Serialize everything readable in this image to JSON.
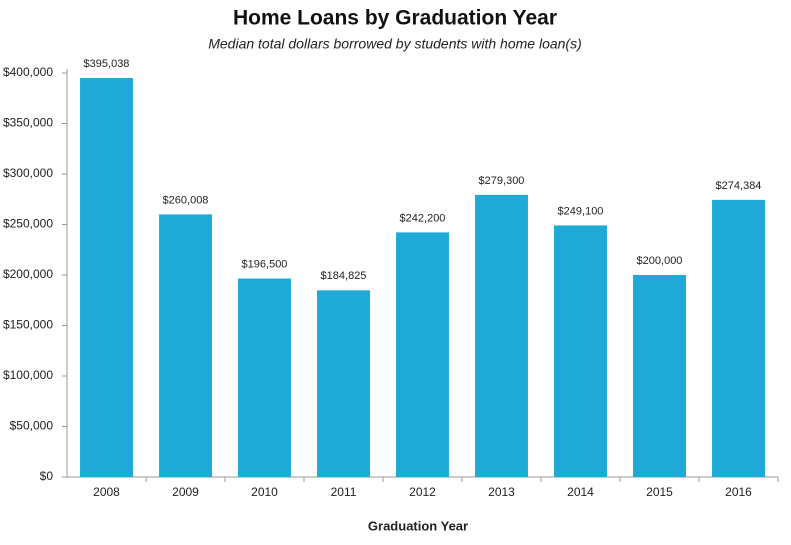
{
  "chart_data": {
    "type": "bar",
    "title": "Home Loans by Graduation Year",
    "subtitle": "Median total dollars borrowed by students with home loan(s)",
    "x_label": "Graduation Year",
    "categories": [
      "2008",
      "2009",
      "2010",
      "2011",
      "2012",
      "2013",
      "2014",
      "2015",
      "2016"
    ],
    "values": [
      395038,
      260008,
      196500,
      184825,
      242200,
      279300,
      249100,
      200000,
      274384
    ],
    "value_labels": [
      "$395,038",
      "$260,008",
      "$196,500",
      "$184,825",
      "$242,200",
      "$279,300",
      "$249,100",
      "$200,000",
      "$274,384"
    ],
    "color": "#1fa9d7",
    "ylim": [
      0,
      400000
    ],
    "yticks": [
      {
        "value": 0,
        "label": "$0"
      },
      {
        "value": 50000,
        "label": "$50,000"
      },
      {
        "value": 100000,
        "label": "$100,000"
      },
      {
        "value": 150000,
        "label": "$150,000"
      },
      {
        "value": 200000,
        "label": "$200,000"
      },
      {
        "value": 250000,
        "label": "$250,000"
      },
      {
        "value": 300000,
        "label": "$300,000"
      },
      {
        "value": 350000,
        "label": "$350,000"
      },
      {
        "value": 400000,
        "label": "$400,000"
      }
    ],
    "grid": false
  }
}
